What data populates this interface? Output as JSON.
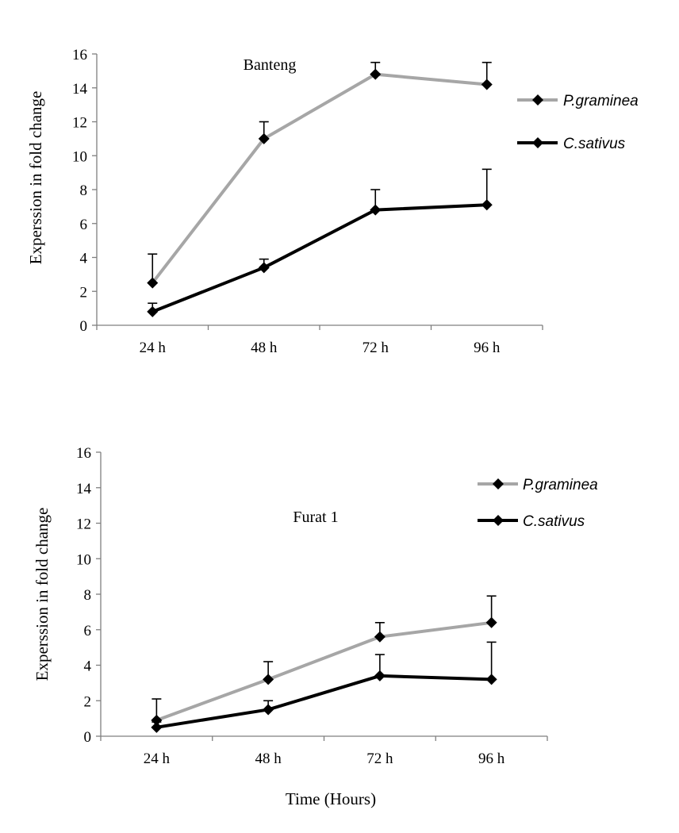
{
  "colors": {
    "p_graminea": "#a6a6a6",
    "c_sativus": "#000000",
    "axis": "#7f7f7f"
  },
  "chart_data": [
    {
      "type": "line",
      "title": "Banteng",
      "ylabel": "Experssion in fold change",
      "xlabel": "",
      "categories": [
        "24 h",
        "48 h",
        "72 h",
        "96 h"
      ],
      "ylim": [
        0,
        16
      ],
      "yticks": [
        0,
        2,
        4,
        6,
        8,
        10,
        12,
        14,
        16
      ],
      "grid": false,
      "legend_position": "right",
      "series": [
        {
          "name": "P.graminea",
          "values": [
            2.5,
            11.0,
            14.8,
            14.2
          ],
          "error": [
            1.7,
            1.0,
            0.7,
            1.3
          ],
          "color": "#a6a6a6",
          "marker": "diamond"
        },
        {
          "name": "C.sativus",
          "values": [
            0.8,
            3.4,
            6.8,
            7.1
          ],
          "error": [
            0.5,
            0.5,
            1.2,
            2.1
          ],
          "color": "#000000",
          "marker": "diamond"
        }
      ]
    },
    {
      "type": "line",
      "title": "Furat 1",
      "ylabel": "Experssion in fold change",
      "xlabel": "Time (Hours)",
      "categories": [
        "24 h",
        "48 h",
        "72 h",
        "96 h"
      ],
      "ylim": [
        0,
        16
      ],
      "yticks": [
        0,
        2,
        4,
        6,
        8,
        10,
        12,
        14,
        16
      ],
      "grid": false,
      "legend_position": "top-right",
      "series": [
        {
          "name": "P.graminea",
          "values": [
            0.9,
            3.2,
            5.6,
            6.4
          ],
          "error": [
            1.2,
            1.0,
            0.8,
            1.5
          ],
          "color": "#a6a6a6",
          "marker": "diamond"
        },
        {
          "name": "C.sativus",
          "values": [
            0.5,
            1.5,
            3.4,
            3.2
          ],
          "error": [
            0.3,
            0.5,
            1.2,
            2.1
          ],
          "color": "#000000",
          "marker": "diamond"
        }
      ]
    }
  ]
}
